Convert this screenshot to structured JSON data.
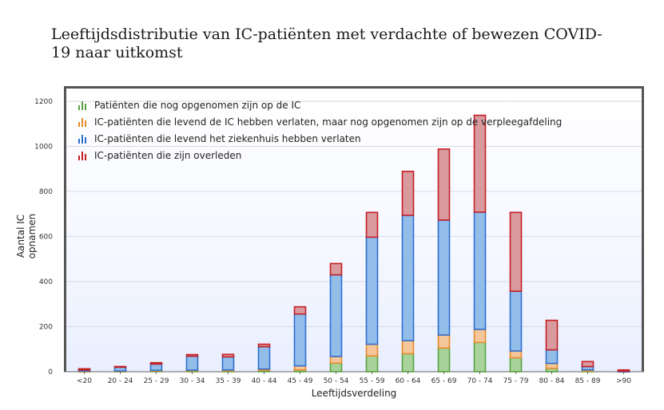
{
  "title": "Leeftijdsdistributie van IC-patiënten met verdachte of bewezen COVID-19 naar uitkomst",
  "colors": {
    "on_ic": "#5aa040",
    "to_ward": "#e88a2a",
    "home": "#2e6fd0",
    "died": "#c41e24",
    "on_ic_fill": "#a8d49c",
    "to_ward_fill": "#f4c69a",
    "home_fill": "#93bde9",
    "died_fill": "#d99a9e"
  },
  "chart_data": {
    "type": "bar",
    "stacked": true,
    "xlabel": "Leeftijdsverdeling",
    "ylabel": "Aantal IC opnamen",
    "ylim": [
      0,
      1200
    ],
    "yticks": [
      0,
      200,
      400,
      600,
      800,
      1000,
      1200
    ],
    "grid": true,
    "legend_position": "top-left",
    "categories": [
      "<20",
      "20 - 24",
      "25 - 29",
      "30 - 34",
      "35 - 39",
      "40 - 44",
      "45 - 49",
      "50 - 54",
      "55 - 59",
      "60 - 64",
      "65 - 69",
      "70 - 74",
      "75 - 79",
      "80 - 84",
      "85 - 89",
      ">90"
    ],
    "series": [
      {
        "name": "Patiënten die nog opgenomen zijn op de IC",
        "color_key": "on_ic",
        "values": [
          2,
          2,
          3,
          4,
          4,
          6,
          8,
          38,
          70,
          80,
          105,
          130,
          62,
          15,
          3,
          0
        ]
      },
      {
        "name": "IC-patiënten die levend de IC hebben verlaten, maar nog opgenomen zijn op de verpleegafdeling",
        "color_key": "to_ward",
        "values": [
          1,
          1,
          3,
          3,
          4,
          6,
          18,
          30,
          52,
          58,
          58,
          58,
          30,
          22,
          5,
          0
        ]
      },
      {
        "name": "IC-patiënten die levend het ziekenhuis hebben verlaten",
        "color_key": "home",
        "values": [
          5,
          17,
          28,
          62,
          58,
          99,
          230,
          362,
          475,
          556,
          510,
          520,
          265,
          60,
          15,
          2
        ]
      },
      {
        "name": "IC-patiënten die zijn overleden",
        "color_key": "died",
        "values": [
          5,
          3,
          6,
          7,
          11,
          11,
          32,
          50,
          110,
          195,
          315,
          430,
          350,
          131,
          22,
          6
        ]
      }
    ]
  }
}
